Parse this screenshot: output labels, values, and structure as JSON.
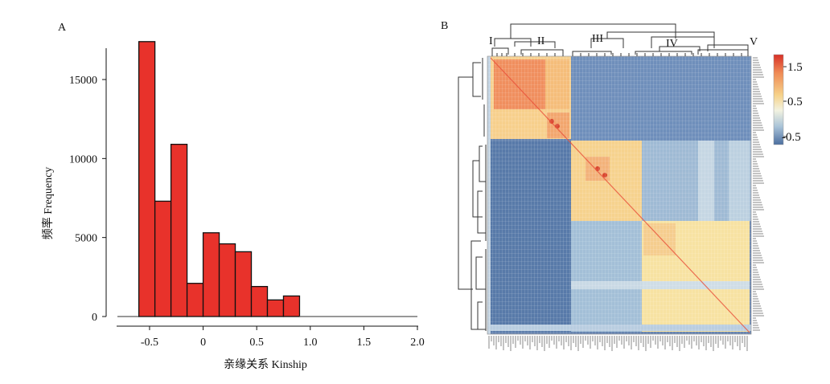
{
  "chart_data": [
    {
      "panel": "A",
      "type": "bar",
      "xlabel": "亲缘关系 Kinship",
      "ylabel": "频率 Frequency",
      "xlim": [
        -0.8,
        2.0
      ],
      "ylim": [
        0,
        18000
      ],
      "x_ticks": [
        -0.5,
        0,
        0.5,
        1.0,
        1.5,
        2.0
      ],
      "x_tick_labels": [
        "-0.5",
        "0",
        "0.5",
        "1.0",
        "1.5",
        "2.0"
      ],
      "y_ticks": [
        0,
        5000,
        10000,
        15000
      ],
      "y_tick_labels": [
        "0",
        "5000",
        "10000",
        "15000"
      ],
      "bar_color": "#e8322b",
      "bins": [
        {
          "x0": -0.8,
          "x1": -0.6,
          "value": 0
        },
        {
          "x0": -0.6,
          "x1": -0.45,
          "value": 17400
        },
        {
          "x0": -0.45,
          "x1": -0.3,
          "value": 7300
        },
        {
          "x0": -0.3,
          "x1": -0.15,
          "value": 10900
        },
        {
          "x0": -0.15,
          "x1": 0.0,
          "value": 2100
        },
        {
          "x0": 0.0,
          "x1": 0.15,
          "value": 5300
        },
        {
          "x0": 0.15,
          "x1": 0.3,
          "value": 4600
        },
        {
          "x0": 0.3,
          "x1": 0.45,
          "value": 4100
        },
        {
          "x0": 0.45,
          "x1": 0.6,
          "value": 1900
        },
        {
          "x0": 0.6,
          "x1": 0.75,
          "value": 1050
        },
        {
          "x0": 0.75,
          "x1": 0.9,
          "value": 1300
        },
        {
          "x0": 0.9,
          "x1": 2.0,
          "value": 0
        }
      ]
    },
    {
      "panel": "B",
      "type": "heatmap",
      "cluster_labels": [
        "I",
        "II",
        "III",
        "IV",
        "V"
      ],
      "colorbar_ticks": [
        1.5,
        0.5,
        -0.5
      ],
      "colorbar_tick_labels": [
        "1.5",
        "0.5",
        "-0.5"
      ],
      "colorscale": [
        "#4b6e9f",
        "#a9c3d8",
        "#f2f2e0",
        "#f6d28a",
        "#ef8a55",
        "#d73027"
      ]
    }
  ],
  "panels": {
    "a_label": "A",
    "b_label": "B"
  }
}
